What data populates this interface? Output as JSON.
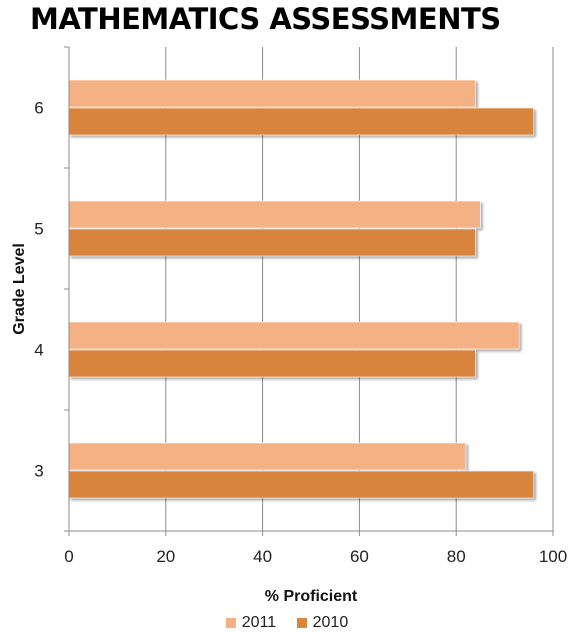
{
  "chart_data": {
    "type": "bar",
    "orientation": "horizontal",
    "title": "MATHEMATICS ASSESSMENTS",
    "xlabel": "% Proficient",
    "ylabel": "Grade Level",
    "categories": [
      "3",
      "4",
      "5",
      "6"
    ],
    "series": [
      {
        "name": "2011",
        "values": [
          82,
          93,
          85,
          84
        ],
        "color": "#f4b183"
      },
      {
        "name": "2010",
        "values": [
          96,
          84,
          84,
          96
        ],
        "color": "#d9843e"
      }
    ],
    "xlim": [
      0,
      100
    ],
    "xticks": [
      0,
      20,
      40,
      60,
      80,
      100
    ],
    "grid": true,
    "legend_position": "bottom"
  }
}
